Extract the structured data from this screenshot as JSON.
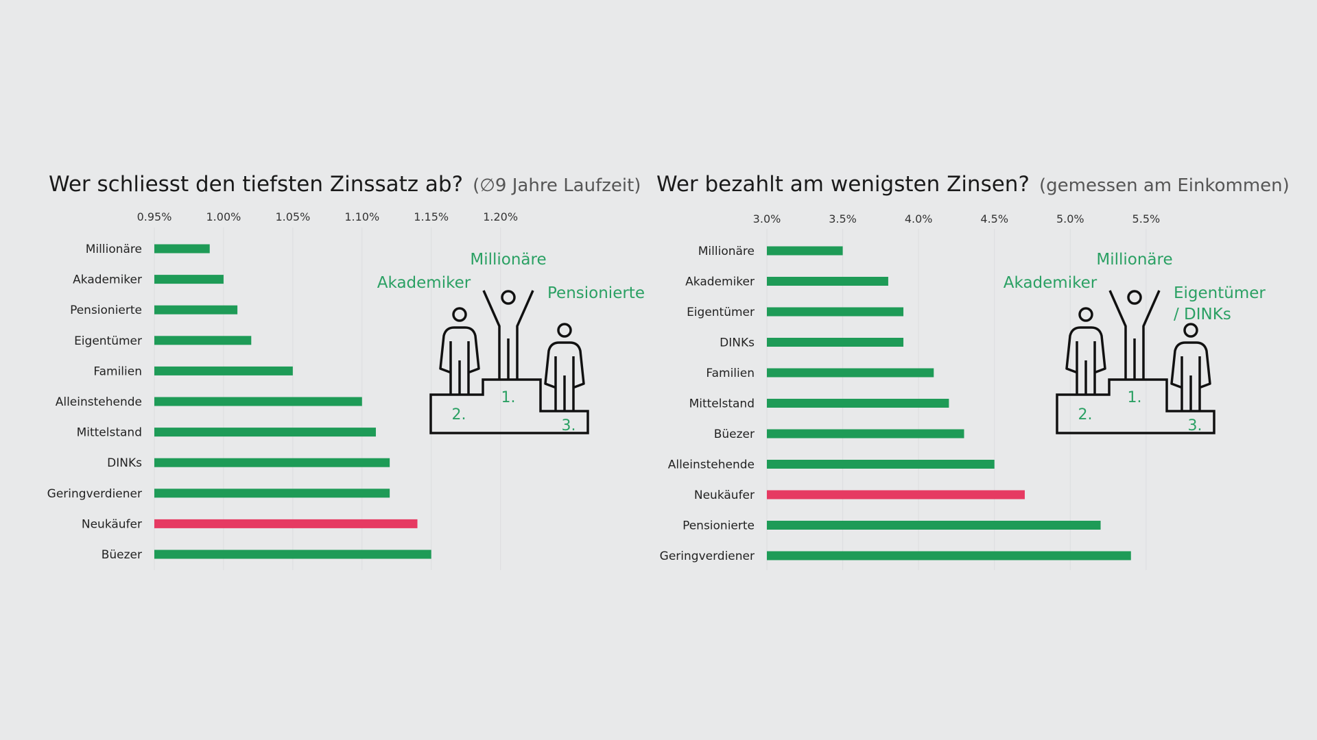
{
  "colors": {
    "background": "#e8e9ea",
    "bar_default": "#1e9b57",
    "bar_highlight": "#e63a62",
    "podium_text": "#2aa063",
    "podium_line": "#111111"
  },
  "charts": [
    {
      "title": "Wer schliesst den tiefsten Zinssatz ab?",
      "subtitle": "(∅9 Jahre Laufzeit)",
      "podium": {
        "first": "Millionäre",
        "second": "Akademiker",
        "third": [
          "Pensionierte"
        ],
        "rank_labels": [
          "1.",
          "2.",
          "3."
        ],
        "icon": "podium-icon"
      }
    },
    {
      "title": "Wer bezahlt am wenigsten Zinsen?",
      "subtitle": "(gemessen am Einkommen)",
      "podium": {
        "first": "Millionäre",
        "second": "Akademiker",
        "third": [
          "Eigentümer",
          "/ DINKs"
        ],
        "rank_labels": [
          "1.",
          "2.",
          "3."
        ],
        "icon": "podium-icon"
      }
    }
  ],
  "chart_data": [
    {
      "type": "bar",
      "orientation": "horizontal",
      "title": "Wer schliesst den tiefsten Zinssatz ab?",
      "subtitle": "(∅9 Jahre Laufzeit)",
      "categories": [
        "Millionäre",
        "Akademiker",
        "Pensionierte",
        "Eigentümer",
        "Familien",
        "Alleinstehende",
        "Mittelstand",
        "DINKs",
        "Geringverdiener",
        "Neukäufer",
        "Büezer"
      ],
      "values": [
        0.99,
        1.0,
        1.01,
        1.02,
        1.05,
        1.1,
        1.11,
        1.12,
        1.12,
        1.14,
        1.15
      ],
      "highlight": "Neukäufer",
      "ticks": [
        0.95,
        1.0,
        1.05,
        1.1,
        1.15,
        1.2
      ],
      "tick_labels": [
        "0.95%",
        "1.00%",
        "1.05%",
        "1.10%",
        "1.15%",
        "1.20%"
      ],
      "xlim": [
        0.95,
        1.22
      ],
      "axis_position": "top",
      "xlabel": "",
      "ylabel": ""
    },
    {
      "type": "bar",
      "orientation": "horizontal",
      "title": "Wer bezahlt am wenigsten Zinsen?",
      "subtitle": "(gemessen am Einkommen)",
      "categories": [
        "Millionäre",
        "Akademiker",
        "Eigentümer",
        "DINKs",
        "Familien",
        "Mittelstand",
        "Büezer",
        "Alleinstehende",
        "Neukäufer",
        "Pensionierte",
        "Geringverdiener"
      ],
      "values": [
        3.5,
        3.8,
        3.9,
        3.9,
        4.1,
        4.2,
        4.3,
        4.5,
        4.7,
        5.2,
        5.4
      ],
      "highlight": "Neukäufer",
      "ticks": [
        3.0,
        3.5,
        4.0,
        4.5,
        5.0,
        5.5
      ],
      "tick_labels": [
        "3.0%",
        "3.5%",
        "4.0%",
        "4.5%",
        "5.0%",
        "5.5%"
      ],
      "xlim": [
        3.0,
        5.6
      ],
      "axis_position": "top",
      "xlabel": "",
      "ylabel": ""
    }
  ]
}
